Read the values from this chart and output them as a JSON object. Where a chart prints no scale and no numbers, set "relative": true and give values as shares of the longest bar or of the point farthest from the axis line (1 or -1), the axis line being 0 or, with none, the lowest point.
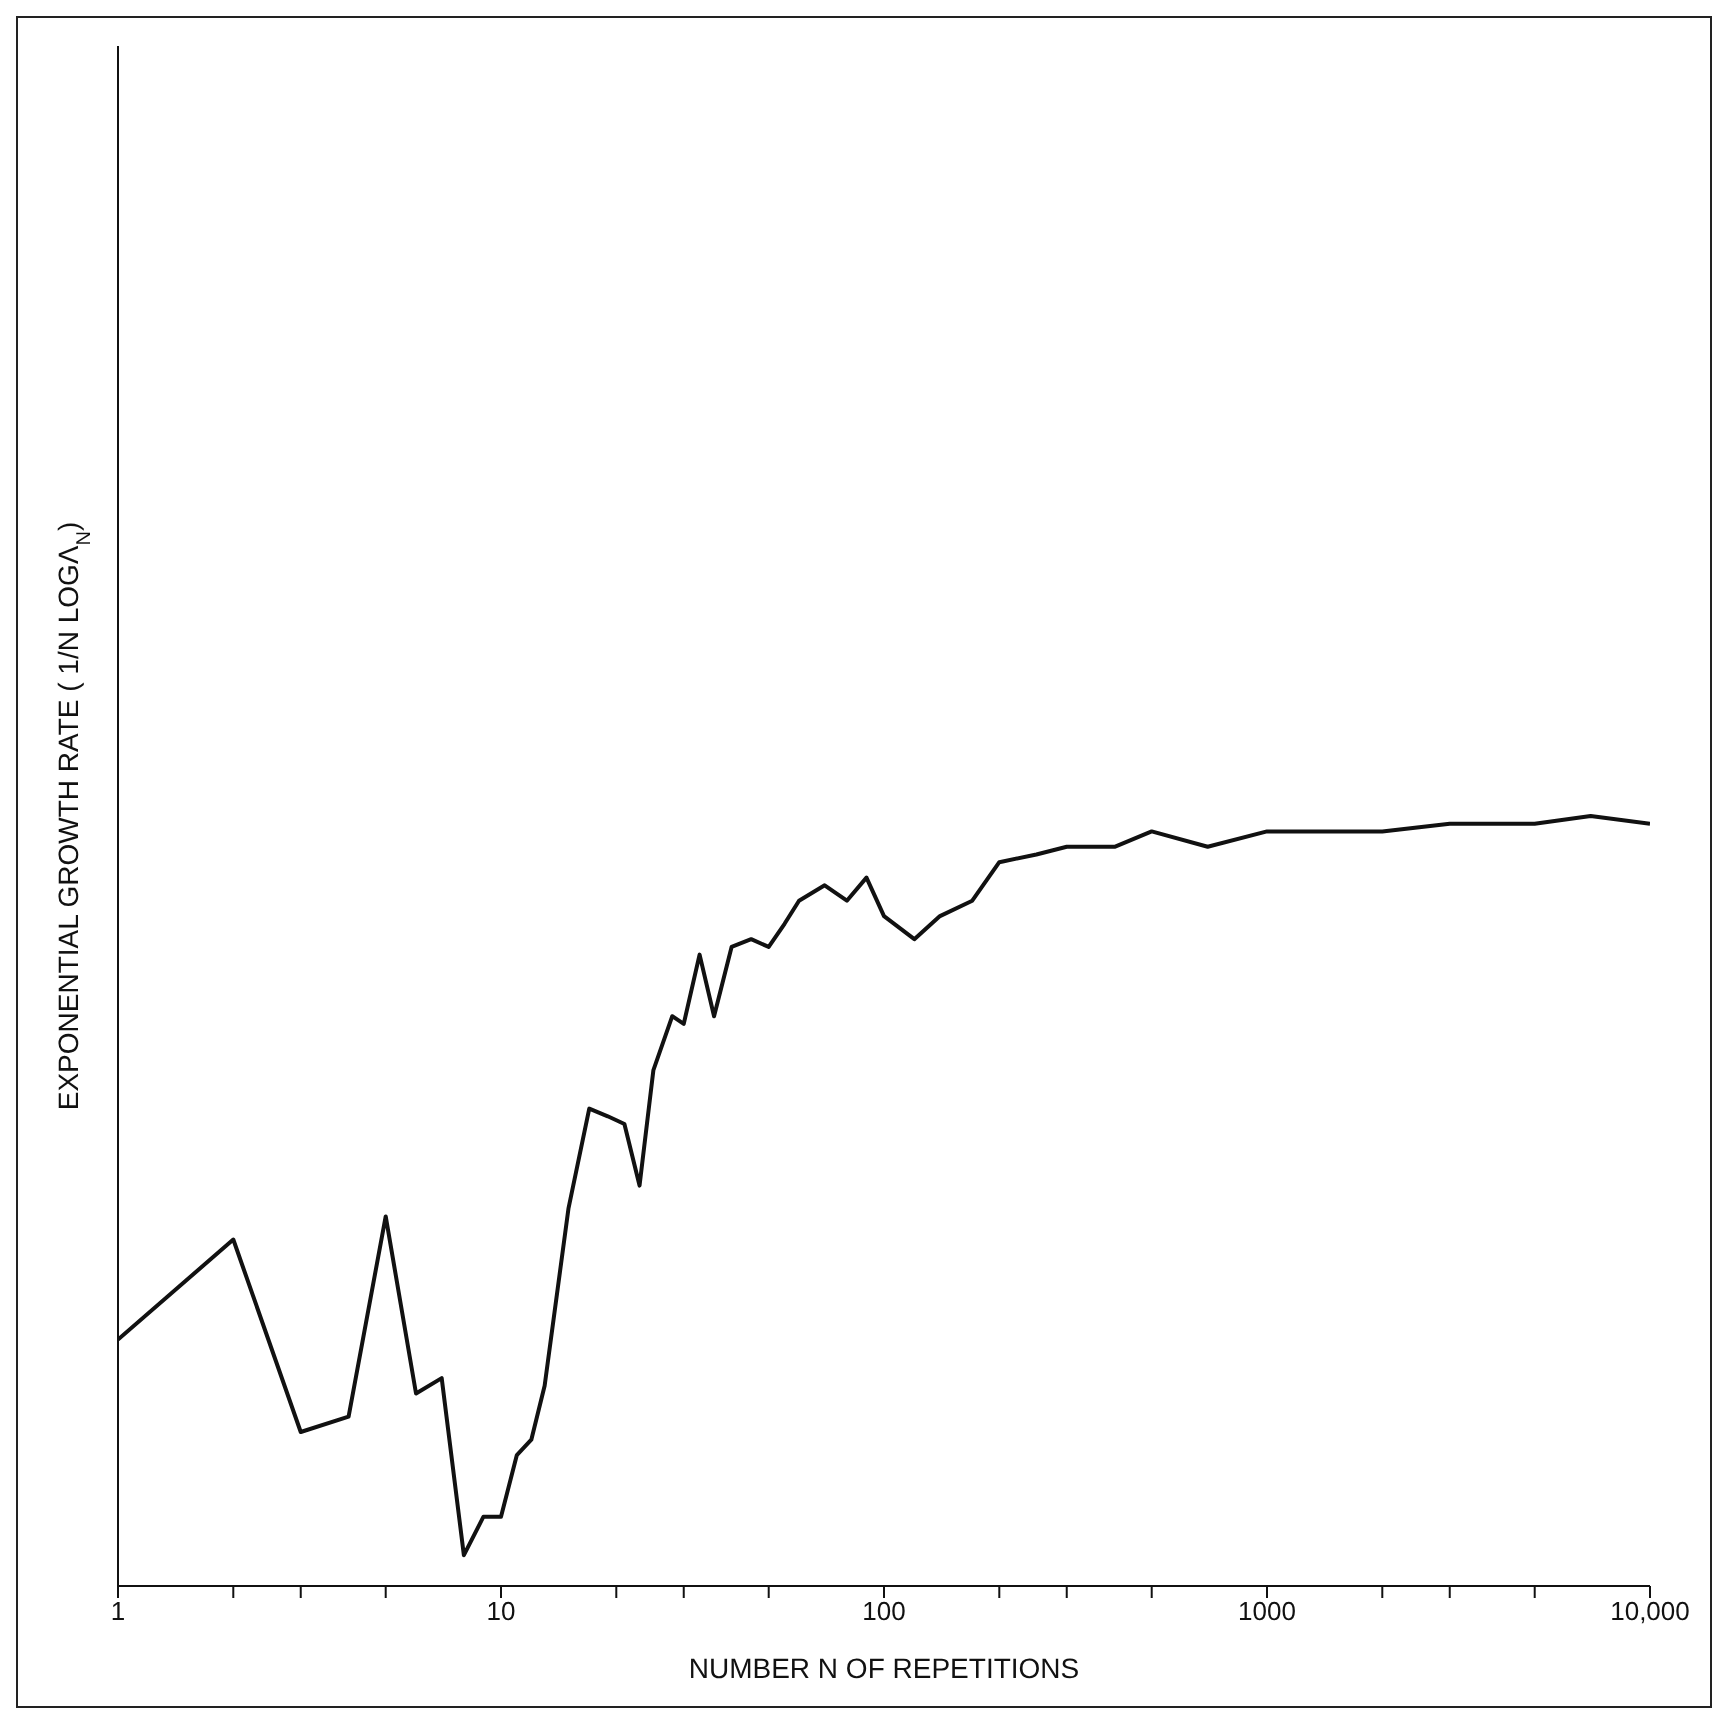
{
  "chart_data": {
    "type": "line",
    "xlabel": "NUMBER N OF REPETITIONS",
    "ylabel": "EXPONENTIAL GROWTH RATE ( 1/N LOGΛ$_{N}$)",
    "log": "x",
    "relative": true,
    "grid": false,
    "legend": false,
    "marker": "none",
    "line_style": "solid",
    "xlim": [
      1,
      10000
    ],
    "xticks": [
      1,
      {
        "value": 2,
        "label": null
      },
      {
        "value": 3,
        "label": null
      },
      {
        "value": 5,
        "label": null
      },
      10,
      {
        "value": 20,
        "label": null
      },
      {
        "value": 30,
        "label": null
      },
      {
        "value": 50,
        "label": null
      },
      100,
      {
        "value": 200,
        "label": null
      },
      {
        "value": 300,
        "label": null
      },
      {
        "value": 500,
        "label": null
      },
      1000,
      {
        "value": 2000,
        "label": null
      },
      {
        "value": 3000,
        "label": null
      },
      {
        "value": 5000,
        "label": null
      },
      {
        "value": 10000,
        "label": "10,000"
      }
    ],
    "series": [
      {
        "color": "#111111",
        "x": [
          1,
          2,
          3,
          4,
          5,
          6,
          7,
          8,
          9,
          10,
          11,
          12,
          13,
          15,
          17,
          19,
          21,
          23,
          25,
          28,
          30,
          33,
          36,
          40,
          45,
          50,
          55,
          60,
          70,
          80,
          90,
          100,
          120,
          140,
          170,
          200,
          250,
          300,
          400,
          500,
          700,
          1000,
          1500,
          2000,
          3000,
          5000,
          7000,
          10000
        ],
        "values": [
          0.32,
          0.45,
          0.2,
          0.22,
          0.48,
          0.25,
          0.27,
          0.04,
          0.09,
          0.09,
          0.17,
          0.19,
          0.26,
          0.49,
          0.62,
          0.61,
          0.6,
          0.52,
          0.67,
          0.74,
          0.73,
          0.82,
          0.74,
          0.83,
          0.84,
          0.83,
          0.86,
          0.89,
          0.91,
          0.89,
          0.92,
          0.87,
          0.84,
          0.87,
          0.89,
          0.94,
          0.95,
          0.96,
          0.96,
          0.98,
          0.96,
          0.98,
          0.98,
          0.98,
          0.99,
          0.99,
          1.0,
          0.99
        ]
      }
    ]
  }
}
